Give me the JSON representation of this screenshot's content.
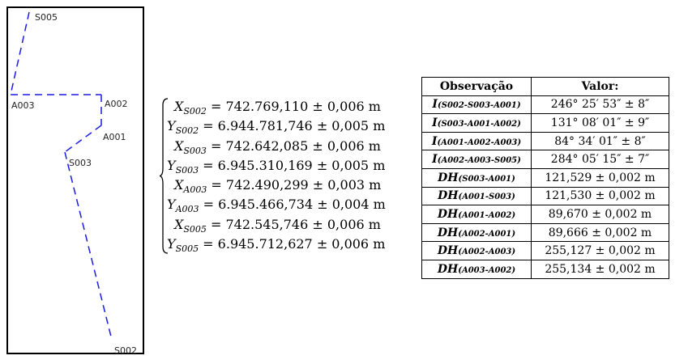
{
  "diagram": {
    "stations": [
      {
        "id": "S005",
        "label": "S005"
      },
      {
        "id": "A003",
        "label": "A003"
      },
      {
        "id": "A002",
        "label": "A002"
      },
      {
        "id": "A001",
        "label": "A001"
      },
      {
        "id": "S003",
        "label": "S003"
      },
      {
        "id": "S002",
        "label": "S002"
      }
    ],
    "line_color": "#1a1ae6"
  },
  "coordinates": [
    {
      "var": "X",
      "sub": "S002",
      "value": " = 742.769,110 ± 0,006 m"
    },
    {
      "var": "Y",
      "sub": "S002",
      "value": " = 6.944.781,746 ± 0,005 m"
    },
    {
      "var": "X",
      "sub": "S003",
      "value": " = 742.642,085 ± 0,006 m"
    },
    {
      "var": "Y",
      "sub": "S003",
      "value": " = 6.945.310,169 ± 0,005 m"
    },
    {
      "var": "X",
      "sub": "A003",
      "value": " = 742.490,299 ± 0,003 m"
    },
    {
      "var": "Y",
      "sub": "A003",
      "value": " = 6.945.466,734 ± 0,004 m"
    },
    {
      "var": "X",
      "sub": "S005",
      "value": " = 742.545,746 ± 0,006 m"
    },
    {
      "var": "Y",
      "sub": "S005",
      "value": " = 6.945.712,627 ± 0,006 m"
    }
  ],
  "table": {
    "headers": [
      "Observação",
      "Valor:"
    ],
    "rows": [
      {
        "obs": "I",
        "sub": "(S002-S003-A001)",
        "value": "246° 25′ 53″ ± 8″"
      },
      {
        "obs": "I",
        "sub": "(S003-A001-A002)",
        "value": "131° 08′ 01″ ± 9″"
      },
      {
        "obs": "I",
        "sub": "(A001-A002-A003)",
        "value": "84° 34′ 01″ ± 8″"
      },
      {
        "obs": "I",
        "sub": "(A002-A003-S005)",
        "value": "284° 05′ 15″ ± 7″"
      },
      {
        "obs": "DH",
        "sub": "(S003-A001)",
        "value": "121,529 ± 0,002 m"
      },
      {
        "obs": "DH",
        "sub": "(A001-S003)",
        "value": "121,530 ± 0,002 m"
      },
      {
        "obs": "DH",
        "sub": "(A001-A002)",
        "value": "89,670 ± 0,002 m"
      },
      {
        "obs": "DH",
        "sub": "(A002-A001)",
        "value": "89,666 ± 0,002 m"
      },
      {
        "obs": "DH",
        "sub": "(A002-A003)",
        "value": "255,127 ± 0,002 m"
      },
      {
        "obs": "DH",
        "sub": "(A003-A002)",
        "value": "255,134 ± 0,002 m"
      }
    ]
  }
}
